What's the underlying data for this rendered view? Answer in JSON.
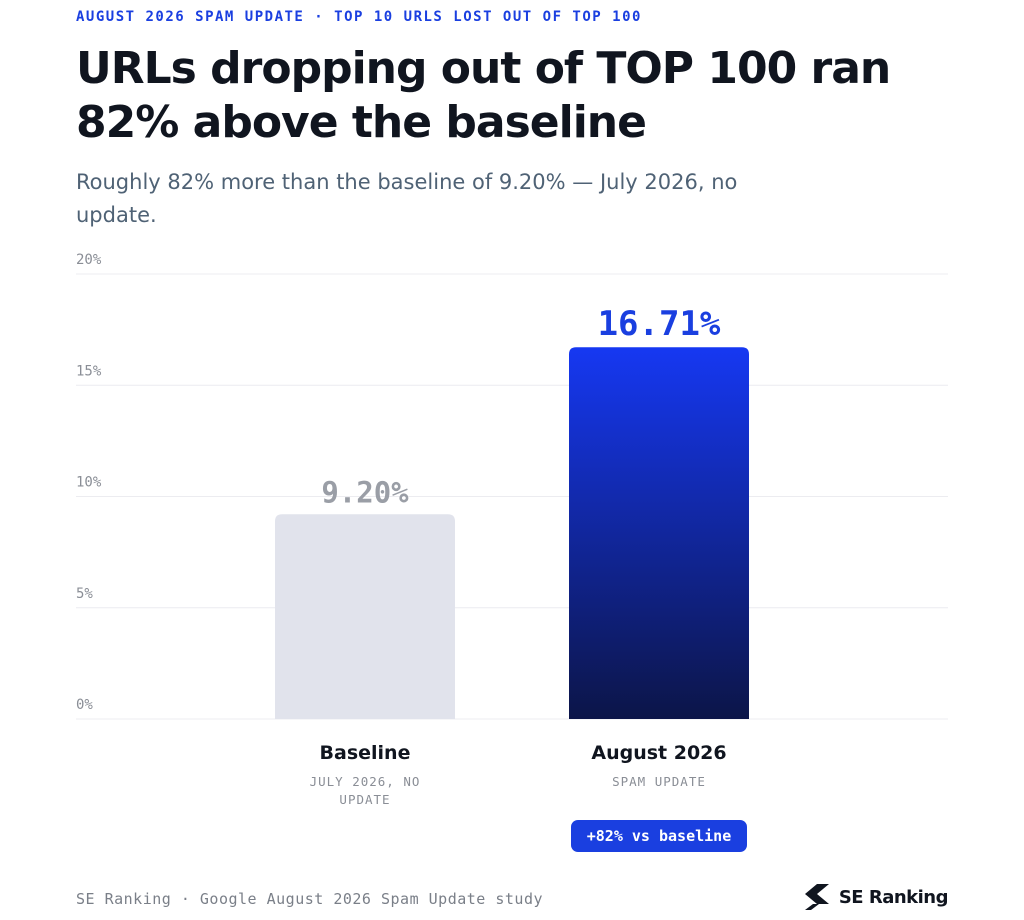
{
  "header": {
    "eyebrow": "AUGUST 2026 SPAM UPDATE · TOP 10 URLS LOST OUT OF TOP 100",
    "title": "URLs dropping out of TOP 100 ran 82% above the baseline",
    "subtitle": "Roughly 82% more than the baseline of 9.20% — July 2026, no update."
  },
  "chart_data": {
    "type": "bar",
    "ylim": [
      0,
      20
    ],
    "yticks": [
      0,
      5,
      10,
      15,
      20
    ],
    "ytick_labels": [
      "0%",
      "5%",
      "10%",
      "15%",
      "20%"
    ],
    "grid": true,
    "categories": [
      "Baseline",
      "August 2026"
    ],
    "category_sublabels": [
      [
        "JULY 2026, NO",
        "UPDATE"
      ],
      [
        "SPAM UPDATE"
      ]
    ],
    "values": [
      9.2,
      16.71
    ],
    "value_labels": [
      "9.20%",
      "16.71%"
    ],
    "annotations": [
      {
        "category": "August 2026",
        "text": "+82% vs baseline"
      }
    ]
  },
  "colors": {
    "accent": "#1a3fe0",
    "baseline_bar": "#e1e3ec",
    "baseline_label": "#9a9ea6",
    "highlight_top": "#1638f2",
    "highlight_bottom": "#0c1548",
    "badge": "#1a3fe0",
    "grid": "#ececf0",
    "tick": "#8a8e96"
  },
  "footer": {
    "source": "SE Ranking · Google August 2026 Spam Update study",
    "brand": "SE Ranking",
    "brand_icon": "se-ranking-logo-icon"
  }
}
